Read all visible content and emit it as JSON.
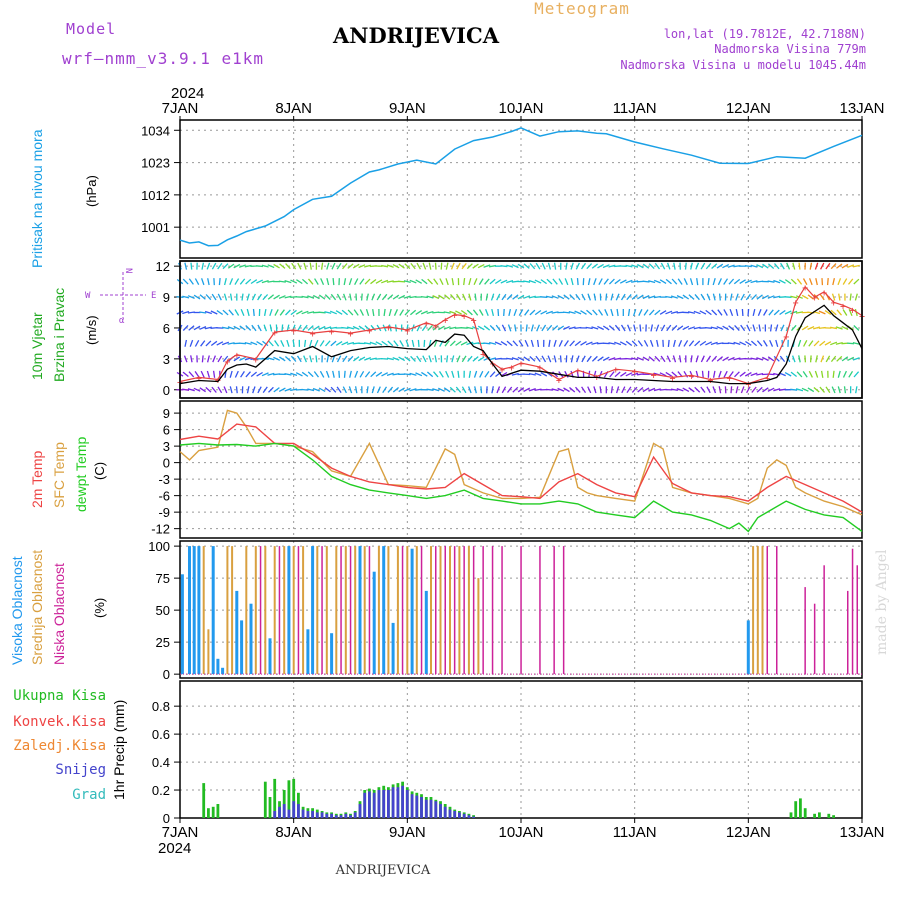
{
  "header": {
    "model_label": "Model",
    "model_name": "wrf—nmm_v3.9.1  e1km",
    "station_title": "ANDRIJEVICA",
    "meteogram_label": "Meteogram",
    "lonlat": "lon,lat (19.7812E, 42.7188N)",
    "altitude": "Nadmorska Visina 779m",
    "model_altitude": "Nadmorska Visina u modelu 1045.44m",
    "watermark": "made by Angel",
    "footer_title": "ANDRIJEVICA"
  },
  "colors": {
    "pressure": "#1aa0e6",
    "wind_speed": "#000000",
    "gust": "#e84040",
    "t2m": "#ee4444",
    "sfc": "#d9a040",
    "dewpt": "#22cc22",
    "high_cloud": "#2299ee",
    "mid_cloud": "#d9a040",
    "low_cloud": "#cc2299",
    "total_precip": "#22bb22",
    "convective": "#ee4444",
    "freezing": "#ee8833",
    "snow": "#4444cc",
    "graupel": "#33bbbb",
    "violet_text": "#a040d0"
  },
  "chart_data": [
    {
      "type": "line",
      "id": "pressure",
      "ylabel": "Pritisak na nivou mora",
      "unit": "(hPa)",
      "top_year": "2024",
      "yticks": [
        1001,
        1012,
        1023,
        1034
      ],
      "ylim": [
        990.5,
        1037.5
      ],
      "xticks": [
        "7JAN",
        "8JAN",
        "9JAN",
        "10JAN",
        "11JAN",
        "12JAN",
        "13JAN"
      ],
      "xlim": [
        0,
        144
      ],
      "series": [
        {
          "x": [
            0,
            2,
            4,
            6,
            8,
            10,
            12,
            14,
            18,
            22,
            24,
            28,
            32,
            36,
            40,
            42,
            46,
            50,
            54,
            58,
            62,
            66,
            70,
            72,
            76,
            80,
            84,
            88,
            90,
            96,
            102,
            108,
            114,
            120,
            126,
            132,
            138,
            144
          ],
          "values": [
            996.6,
            995.6,
            996.0,
            994.7,
            994.8,
            996.7,
            998.0,
            999.5,
            1001.4,
            1004.6,
            1007.0,
            1010.5,
            1011.5,
            1016.0,
            1019.8,
            1020.5,
            1022.5,
            1023.8,
            1022.5,
            1027.6,
            1030.5,
            1031.7,
            1033.6,
            1034.8,
            1032.0,
            1033.5,
            1033.8,
            1033.0,
            1032.8,
            1030.0,
            1027.7,
            1025.5,
            1022.8,
            1022.7,
            1025.0,
            1024.5,
            1028.5,
            1032.3
          ]
        }
      ]
    },
    {
      "type": "line",
      "id": "wind",
      "ylabel": "10m Vjetar Brzina i Pravac",
      "ylabel_line1": "10m Vjetar",
      "ylabel_line2": "Brzina i Pravac",
      "unit": "(m/s)",
      "compass": "W <—|—> E  N α",
      "compass_w": "W",
      "compass_e": "E",
      "compass_n": "N",
      "compass_alpha": "α",
      "yticks": [
        0,
        3,
        6,
        9,
        12
      ],
      "ylim": [
        -0.8,
        12.5
      ],
      "series": [
        {
          "name": "speed",
          "x": [
            0,
            4,
            8,
            10,
            12,
            14,
            16,
            20,
            24,
            28,
            32,
            36,
            40,
            44,
            48,
            52,
            54,
            56,
            58,
            60,
            62,
            64,
            66,
            68,
            70,
            72,
            76,
            80,
            84,
            88,
            92,
            96,
            100,
            104,
            108,
            112,
            116,
            120,
            124,
            126,
            128,
            130,
            132,
            134,
            136,
            138,
            140,
            142,
            144
          ],
          "values": [
            0.6,
            0.9,
            0.8,
            2.0,
            2.4,
            2.5,
            2.2,
            3.8,
            3.5,
            4.2,
            3.2,
            3.8,
            4.1,
            4.2,
            4.0,
            3.9,
            4.8,
            4.6,
            5.4,
            5.3,
            4.2,
            3.8,
            2.5,
            1.3,
            1.6,
            1.9,
            1.8,
            1.5,
            1.2,
            1.2,
            1.0,
            1.0,
            0.9,
            0.8,
            0.8,
            0.8,
            0.6,
            0.6,
            0.9,
            1.2,
            2.5,
            5.2,
            7.0,
            7.6,
            8.2,
            7.2,
            6.5,
            5.8,
            4.0
          ]
        },
        {
          "name": "gust",
          "x": [
            0,
            4,
            8,
            10,
            12,
            16,
            20,
            24,
            28,
            32,
            36,
            40,
            44,
            48,
            52,
            54,
            56,
            58,
            60,
            62,
            64,
            66,
            68,
            70,
            72,
            76,
            80,
            84,
            88,
            92,
            96,
            100,
            104,
            108,
            112,
            116,
            120,
            124,
            128,
            130,
            132,
            134,
            136,
            138,
            140,
            142,
            144
          ],
          "values": [
            0.8,
            1.2,
            1.0,
            2.8,
            3.4,
            3.0,
            5.6,
            5.8,
            5.5,
            5.7,
            5.5,
            5.8,
            6.1,
            5.8,
            6.5,
            6.2,
            6.8,
            7.3,
            7.2,
            6.8,
            3.5,
            2.6,
            2.0,
            2.2,
            2.6,
            2.2,
            1.0,
            1.9,
            1.3,
            2.0,
            1.8,
            1.5,
            1.2,
            1.4,
            1.0,
            1.2,
            0.6,
            1.2,
            5.2,
            8.5,
            10.0,
            9.0,
            9.5,
            8.5,
            8.2,
            7.8,
            7.2
          ]
        }
      ]
    },
    {
      "type": "line",
      "id": "temperature",
      "ylabel": "2m Temp / SFC Temp / dewpt Temp",
      "label_t2m": "2m Temp",
      "label_sfc": "SFC Temp",
      "label_dewpt": "dewpt Temp",
      "unit": "(C)",
      "yticks": [
        -12,
        -9,
        -6,
        -3,
        0,
        3,
        6,
        9
      ],
      "ylim": [
        -13.7,
        11.2
      ],
      "series": [
        {
          "name": "2m Temp",
          "x": [
            0,
            4,
            8,
            12,
            16,
            20,
            24,
            28,
            32,
            36,
            40,
            44,
            48,
            52,
            56,
            60,
            64,
            68,
            72,
            76,
            80,
            84,
            88,
            92,
            96,
            100,
            104,
            108,
            112,
            116,
            120,
            124,
            128,
            132,
            136,
            140,
            144
          ],
          "values": [
            4.2,
            4.8,
            4.3,
            7.0,
            6.5,
            3.5,
            3.5,
            1.5,
            -1.0,
            -2.5,
            -3.5,
            -4.0,
            -4.5,
            -4.8,
            -4.5,
            -2.0,
            -4.0,
            -6.0,
            -6.2,
            -6.5,
            -3.5,
            -2.0,
            -4.0,
            -5.5,
            -6.2,
            1.0,
            -3.8,
            -5.5,
            -6.0,
            -6.2,
            -7.0,
            -4.5,
            -2.5,
            -4.0,
            -5.5,
            -7.0,
            -9.0
          ]
        },
        {
          "name": "SFC Temp",
          "x": [
            0,
            2,
            4,
            8,
            10,
            12,
            14,
            16,
            20,
            24,
            28,
            32,
            36,
            40,
            44,
            48,
            52,
            56,
            58,
            60,
            64,
            68,
            72,
            76,
            80,
            82,
            84,
            86,
            88,
            92,
            96,
            100,
            102,
            104,
            108,
            112,
            116,
            120,
            122,
            124,
            126,
            128,
            130,
            132,
            136,
            140,
            144
          ],
          "values": [
            2.0,
            0.5,
            2.2,
            2.8,
            9.5,
            9.0,
            6.5,
            3.5,
            3.5,
            3.0,
            2.0,
            -1.5,
            -2.5,
            3.5,
            -4.0,
            -4.2,
            -4.5,
            2.5,
            1.5,
            -4.0,
            -5.5,
            -6.5,
            -6.5,
            -6.3,
            2.0,
            2.5,
            -4.5,
            -5.5,
            -6.0,
            -6.5,
            -7.0,
            3.5,
            2.5,
            -4.5,
            -5.5,
            -6.0,
            -6.5,
            -7.5,
            -6.5,
            -1.0,
            0.5,
            -0.5,
            -4.5,
            -5.5,
            -7.0,
            -8.0,
            -9.5
          ]
        },
        {
          "name": "dewpt Temp",
          "x": [
            0,
            4,
            8,
            12,
            16,
            20,
            24,
            28,
            32,
            36,
            40,
            44,
            48,
            52,
            56,
            60,
            64,
            68,
            72,
            76,
            80,
            84,
            88,
            92,
            96,
            100,
            104,
            108,
            112,
            116,
            118,
            120,
            122,
            124,
            128,
            132,
            136,
            140,
            144
          ],
          "values": [
            3.2,
            3.5,
            3.2,
            3.3,
            3.0,
            3.5,
            3.0,
            0.5,
            -2.5,
            -4.0,
            -5.0,
            -5.5,
            -6.0,
            -6.5,
            -6.0,
            -5.0,
            -6.5,
            -7.0,
            -7.5,
            -7.5,
            -7.0,
            -7.5,
            -9.0,
            -9.5,
            -10.0,
            -7.0,
            -9.0,
            -9.5,
            -10.5,
            -12.0,
            -11.0,
            -12.5,
            -10.0,
            -9.0,
            -7.0,
            -8.5,
            -9.5,
            -10.0,
            -12.5
          ]
        }
      ]
    },
    {
      "type": "bar",
      "id": "cloud",
      "ylabel": "Visoka Oblacnost / Srednja Oblacnost / Niska Oblacnost",
      "label_high": "Visoka Oblacnost",
      "label_mid": "Srednja Oblacnost",
      "label_low": "Niska Oblacnost",
      "unit": "(%)",
      "yticks": [
        0,
        25,
        50,
        75,
        100
      ],
      "ylim": [
        -3,
        104
      ],
      "series": [
        {
          "name": "Visoka Oblacnost",
          "x": [
            0.5,
            2,
            3,
            4,
            7,
            8,
            9,
            12,
            13,
            15,
            19,
            23,
            27,
            28,
            32,
            38,
            41,
            43,
            45,
            49,
            52,
            120
          ],
          "values": [
            78,
            100,
            100,
            100,
            100,
            12,
            5,
            65,
            42,
            55,
            28,
            100,
            35,
            100,
            32,
            100,
            80,
            100,
            40,
            98,
            65,
            42
          ]
        },
        {
          "name": "Srednja Oblacnost",
          "x": [
            5,
            6,
            10,
            11,
            14,
            16,
            18,
            20,
            22,
            24,
            26,
            29,
            31,
            33,
            35,
            37,
            39,
            42,
            44,
            46,
            48,
            50,
            53,
            55,
            57,
            59,
            61,
            63,
            121,
            122,
            123
          ],
          "values": [
            100,
            35,
            100,
            100,
            100,
            100,
            100,
            100,
            100,
            100,
            100,
            100,
            100,
            100,
            100,
            100,
            100,
            100,
            100,
            100,
            100,
            100,
            100,
            100,
            100,
            100,
            100,
            75,
            100,
            100,
            100
          ]
        },
        {
          "name": "Niska Oblacnost",
          "x": [
            17,
            21,
            25,
            30,
            34,
            36,
            40,
            47,
            51,
            54,
            56,
            58,
            60,
            62,
            64,
            66,
            68,
            72,
            76,
            79,
            81,
            124,
            126,
            132,
            134,
            136,
            141,
            142,
            143
          ],
          "values": [
            100,
            100,
            100,
            100,
            100,
            100,
            100,
            100,
            100,
            100,
            100,
            100,
            100,
            100,
            100,
            100,
            100,
            100,
            100,
            100,
            100,
            100,
            100,
            68,
            55,
            85,
            65,
            98,
            85
          ]
        }
      ]
    },
    {
      "type": "bar",
      "id": "precip",
      "ylabel": "1hr Precip (mm)",
      "legend": [
        "Ukupna Kisa",
        "Konvek.Kisa",
        "Zaledj.Kisa",
        "Snijeg",
        "Grad"
      ],
      "yticks": [
        0,
        0.2,
        0.4,
        0.6,
        0.8
      ],
      "ylim": [
        0,
        0.98
      ],
      "bottom_year": "2024",
      "series": [
        {
          "name": "Ukupna Kisa",
          "x": [
            5,
            6,
            7,
            8,
            18,
            19,
            20,
            21,
            22,
            23,
            24,
            25,
            26,
            27,
            28,
            29,
            30,
            31,
            32,
            33,
            34,
            35,
            36,
            37,
            38,
            39,
            40,
            41,
            42,
            43,
            44,
            45,
            46,
            47,
            48,
            49,
            50,
            51,
            52,
            53,
            54,
            55,
            56,
            57,
            58,
            59,
            60,
            61,
            62,
            129,
            130,
            131,
            132,
            134,
            135,
            137,
            138
          ],
          "values": [
            0.25,
            0.07,
            0.08,
            0.1,
            0.26,
            0.15,
            0.28,
            0.12,
            0.2,
            0.27,
            0.28,
            0.18,
            0.08,
            0.07,
            0.07,
            0.06,
            0.05,
            0.04,
            0.04,
            0.03,
            0.03,
            0.04,
            0.03,
            0.05,
            0.12,
            0.2,
            0.21,
            0.2,
            0.22,
            0.23,
            0.22,
            0.24,
            0.25,
            0.26,
            0.22,
            0.19,
            0.18,
            0.17,
            0.15,
            0.15,
            0.13,
            0.12,
            0.1,
            0.08,
            0.06,
            0.05,
            0.04,
            0.03,
            0.02,
            0.04,
            0.12,
            0.14,
            0.07,
            0.03,
            0.04,
            0.03,
            0.02
          ]
        },
        {
          "name": "Snijeg",
          "x": [
            20,
            21,
            22,
            23,
            24,
            25,
            26,
            27,
            28,
            29,
            30,
            31,
            32,
            33,
            34,
            35,
            36,
            37,
            38,
            39,
            40,
            41,
            42,
            43,
            44,
            45,
            46,
            47,
            48,
            49,
            50,
            51,
            52,
            53,
            54,
            55,
            56,
            57,
            58,
            59,
            60,
            61,
            62
          ],
          "values": [
            0.05,
            0.08,
            0.1,
            0.06,
            0.12,
            0.1,
            0.06,
            0.05,
            0.05,
            0.04,
            0.04,
            0.03,
            0.03,
            0.02,
            0.02,
            0.03,
            0.02,
            0.04,
            0.1,
            0.18,
            0.19,
            0.18,
            0.2,
            0.2,
            0.2,
            0.22,
            0.22,
            0.23,
            0.2,
            0.17,
            0.16,
            0.15,
            0.13,
            0.13,
            0.12,
            0.1,
            0.08,
            0.06,
            0.05,
            0.04,
            0.03,
            0.02,
            0.01
          ]
        }
      ]
    }
  ]
}
